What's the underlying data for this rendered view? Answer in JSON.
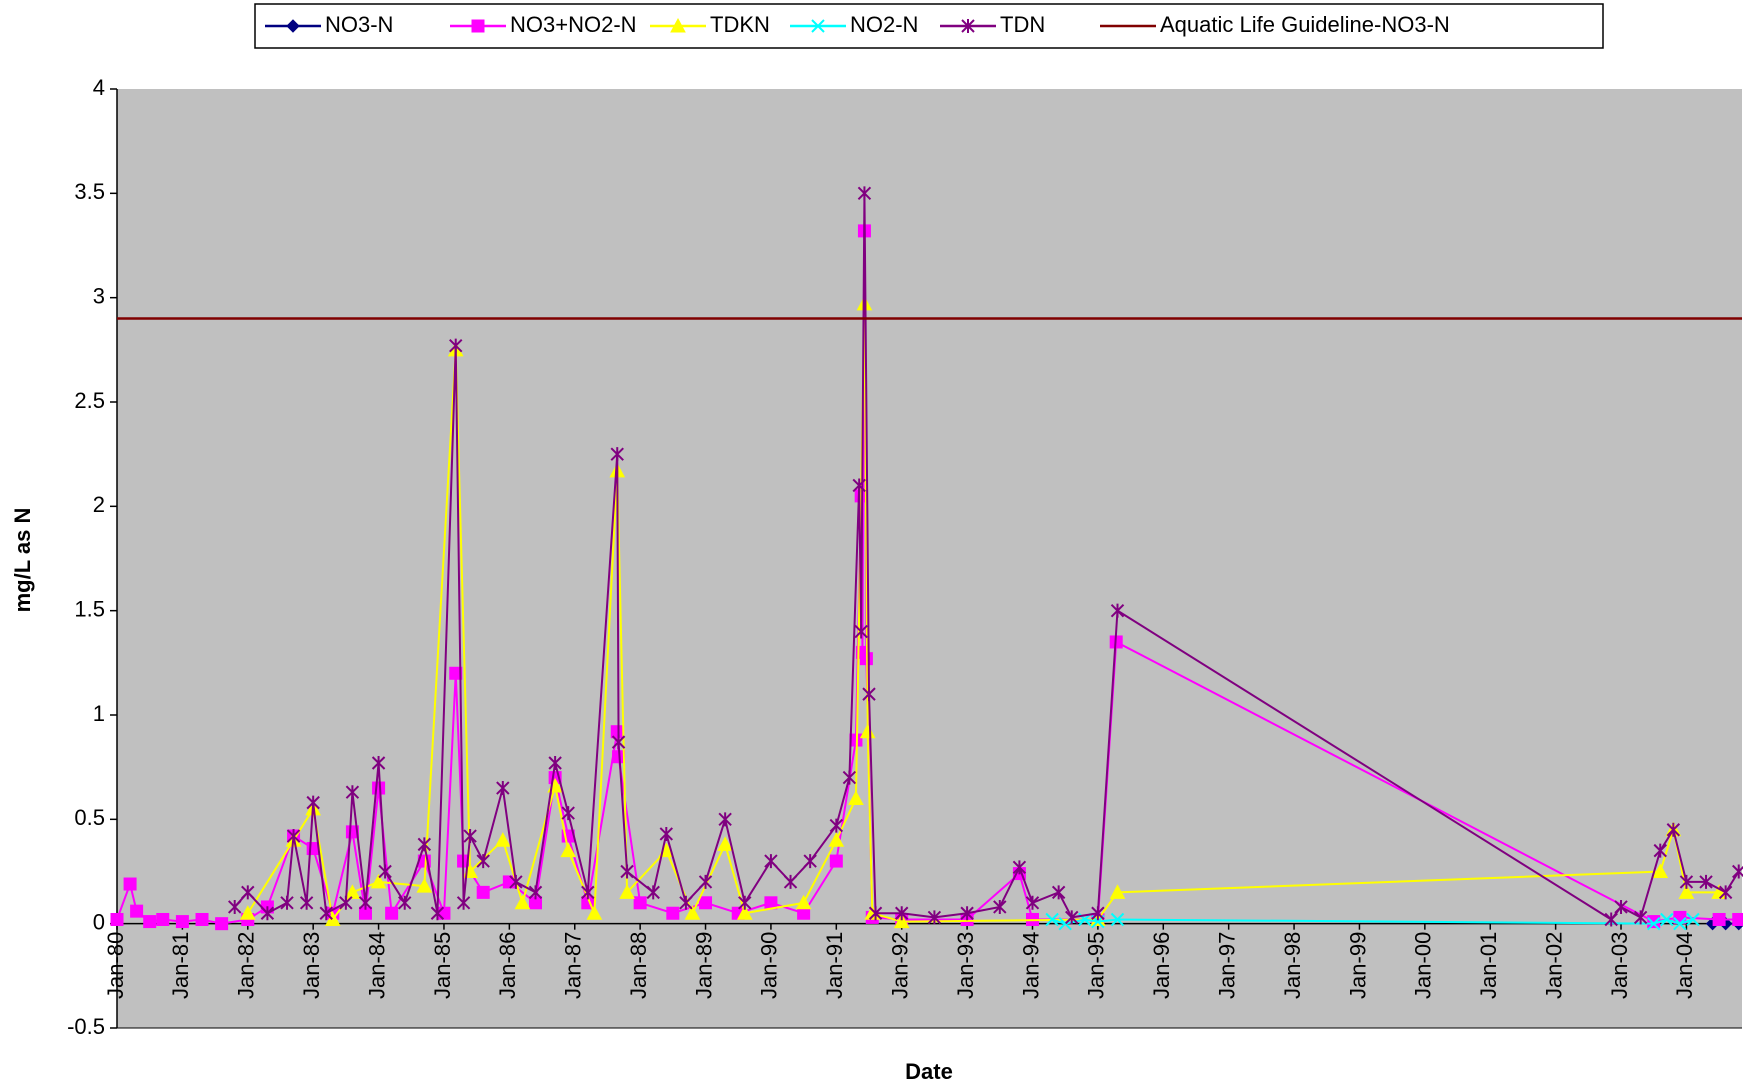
{
  "chart_data": {
    "type": "line",
    "x_label": "Date",
    "y_label": "mg/L as N",
    "xlim": [
      1980,
      2004.85
    ],
    "ylim": [
      -0.5,
      4
    ],
    "yticks": [
      -0.5,
      0,
      0.5,
      1,
      1.5,
      2,
      2.5,
      3,
      3.5,
      4
    ],
    "xticks": [
      {
        "value": 1980,
        "label": "Jan-80"
      },
      {
        "value": 1981,
        "label": "Jan-81"
      },
      {
        "value": 1982,
        "label": "Jan-82"
      },
      {
        "value": 1983,
        "label": "Jan-83"
      },
      {
        "value": 1984,
        "label": "Jan-84"
      },
      {
        "value": 1985,
        "label": "Jan-85"
      },
      {
        "value": 1986,
        "label": "Jan-86"
      },
      {
        "value": 1987,
        "label": "Jan-87"
      },
      {
        "value": 1988,
        "label": "Jan-88"
      },
      {
        "value": 1989,
        "label": "Jan-89"
      },
      {
        "value": 1990,
        "label": "Jan-90"
      },
      {
        "value": 1991,
        "label": "Jan-91"
      },
      {
        "value": 1992,
        "label": "Jan-92"
      },
      {
        "value": 1993,
        "label": "Jan-93"
      },
      {
        "value": 1994,
        "label": "Jan-94"
      },
      {
        "value": 1995,
        "label": "Jan-95"
      },
      {
        "value": 1996,
        "label": "Jan-96"
      },
      {
        "value": 1997,
        "label": "Jan-97"
      },
      {
        "value": 1998,
        "label": "Jan-98"
      },
      {
        "value": 1999,
        "label": "Jan-99"
      },
      {
        "value": 2000,
        "label": "Jan-00"
      },
      {
        "value": 2001,
        "label": "Jan-01"
      },
      {
        "value": 2002,
        "label": "Jan-02"
      },
      {
        "value": 2003,
        "label": "Jan-03"
      },
      {
        "value": 2004,
        "label": "Jan-04"
      }
    ],
    "plot_background": "#C0C0C0",
    "legend": "top",
    "series": [
      {
        "name": "NO3-N",
        "color": "#000080",
        "marker": "diamond",
        "x": [
          2004.4,
          2004.6,
          2004.8
        ],
        "values": [
          0,
          0,
          0
        ]
      },
      {
        "name": "NO3+NO2-N",
        "color": "#FF00FF",
        "marker": "square",
        "x": [
          1980.0,
          1980.2,
          1980.3,
          1980.5,
          1980.7,
          1981.0,
          1981.3,
          1981.6,
          1982.0,
          1982.3,
          1982.7,
          1983.0,
          1983.3,
          1983.6,
          1983.8,
          1984.0,
          1984.2,
          1984.7,
          1985.0,
          1985.18,
          1985.3,
          1985.6,
          1986.0,
          1986.4,
          1986.7,
          1986.9,
          1987.2,
          1987.65,
          1987.67,
          1988.0,
          1988.5,
          1989.0,
          1989.5,
          1990.0,
          1990.5,
          1991.0,
          1991.3,
          1991.38,
          1991.4,
          1991.43,
          1991.46,
          1991.55,
          1992.0,
          1993.0,
          1993.8,
          1994.0,
          1995.0,
          1995.28,
          2003.5,
          2003.9,
          2004.5,
          2004.8
        ],
        "values": [
          0.02,
          0.19,
          0.06,
          0.01,
          0.02,
          0.01,
          0.02,
          0,
          0.02,
          0.08,
          0.42,
          0.36,
          0.05,
          0.44,
          0.05,
          0.65,
          0.05,
          0.3,
          0.05,
          1.2,
          0.3,
          0.15,
          0.2,
          0.1,
          0.7,
          0.42,
          0.1,
          0.92,
          0.8,
          0.1,
          0.05,
          0.1,
          0.05,
          0.1,
          0.05,
          0.3,
          0.88,
          2.05,
          1.3,
          3.32,
          1.27,
          0.03,
          0.02,
          0.02,
          0.24,
          0.02,
          0.02,
          1.35,
          0.01,
          0.03,
          0.02,
          0.02
        ]
      },
      {
        "name": "TDKN",
        "color": "#FFFF00",
        "marker": "triangle",
        "x": [
          1982.0,
          1982.7,
          1983.0,
          1983.3,
          1983.6,
          1984.0,
          1984.7,
          1985.18,
          1985.4,
          1985.9,
          1986.2,
          1986.7,
          1986.9,
          1987.3,
          1987.65,
          1987.8,
          1988.4,
          1988.8,
          1989.3,
          1989.6,
          1990.5,
          1991.0,
          1991.3,
          1991.43,
          1991.48,
          1991.55,
          1992.0,
          1995.0,
          1995.3,
          2003.6,
          2003.8,
          2004.0,
          2004.5
        ],
        "values": [
          0.05,
          0.4,
          0.55,
          0.02,
          0.15,
          0.2,
          0.18,
          2.75,
          0.25,
          0.4,
          0.1,
          0.66,
          0.35,
          0.05,
          2.17,
          0.15,
          0.35,
          0.05,
          0.38,
          0.05,
          0.1,
          0.4,
          0.6,
          2.97,
          0.92,
          0.05,
          0.01,
          0.02,
          0.15,
          0.25,
          0.45,
          0.15,
          0.15
        ]
      },
      {
        "name": "NO2-N",
        "color": "#00FFFF",
        "marker": "x",
        "x": [
          1994.3,
          1994.5,
          1994.8,
          1995.0,
          1995.3,
          2003.5,
          2003.7,
          2003.9,
          2004.1
        ],
        "values": [
          0.02,
          0,
          0.02,
          0.01,
          0.02,
          0,
          0.02,
          0,
          0.02
        ]
      },
      {
        "name": "TDN",
        "color": "#800080",
        "marker": "asterisk",
        "x": [
          1981.8,
          1982.0,
          1982.3,
          1982.6,
          1982.7,
          1982.9,
          1983.0,
          1983.2,
          1983.5,
          1983.6,
          1983.8,
          1984.0,
          1984.1,
          1984.4,
          1984.7,
          1984.9,
          1985.18,
          1985.3,
          1985.4,
          1985.6,
          1985.9,
          1986.1,
          1986.4,
          1986.7,
          1986.9,
          1987.2,
          1987.65,
          1987.67,
          1987.8,
          1988.2,
          1988.4,
          1988.7,
          1989.0,
          1989.3,
          1989.6,
          1990.0,
          1990.3,
          1990.6,
          1991.0,
          1991.2,
          1991.35,
          1991.38,
          1991.43,
          1991.5,
          1991.6,
          1992.0,
          1992.5,
          1993.0,
          1993.5,
          1993.8,
          1994.0,
          1994.4,
          1994.6,
          1995.0,
          1995.3,
          2002.85,
          2003.0,
          2003.3,
          2003.6,
          2003.8,
          2004.0,
          2004.3,
          2004.6,
          2004.8
        ],
        "values": [
          0.08,
          0.15,
          0.05,
          0.1,
          0.42,
          0.1,
          0.58,
          0.05,
          0.1,
          0.63,
          0.1,
          0.77,
          0.25,
          0.1,
          0.38,
          0.05,
          2.77,
          0.1,
          0.42,
          0.3,
          0.65,
          0.2,
          0.15,
          0.77,
          0.53,
          0.15,
          2.25,
          0.87,
          0.25,
          0.15,
          0.43,
          0.1,
          0.2,
          0.5,
          0.1,
          0.3,
          0.2,
          0.3,
          0.47,
          0.7,
          2.1,
          1.4,
          3.5,
          1.1,
          0.05,
          0.05,
          0.03,
          0.05,
          0.08,
          0.27,
          0.1,
          0.15,
          0.03,
          0.05,
          1.5,
          0.02,
          0.08,
          0.03,
          0.35,
          0.45,
          0.2,
          0.2,
          0.15,
          0.25
        ]
      },
      {
        "name": "Aquatic Life Guideline-NO3-N",
        "color": "#800000",
        "marker": "none",
        "x": [
          1980,
          2004.85
        ],
        "values": [
          2.9,
          2.9
        ]
      }
    ]
  }
}
